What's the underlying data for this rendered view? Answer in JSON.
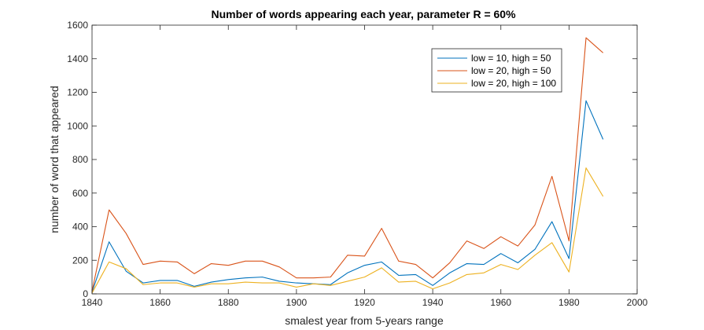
{
  "chart_data": {
    "type": "line",
    "title": "Number of words appearing each year, parameter R = 60%",
    "xlabel": "smalest year from 5-years range",
    "ylabel": "number of word that appeared",
    "xlim": [
      1840,
      2000
    ],
    "ylim": [
      0,
      1600
    ],
    "xticks": [
      1840,
      1860,
      1880,
      1900,
      1920,
      1940,
      1960,
      1980,
      2000
    ],
    "yticks": [
      0,
      200,
      400,
      600,
      800,
      1000,
      1200,
      1400,
      1600
    ],
    "grid": false,
    "legend_position": "top-right",
    "x": [
      1840,
      1845,
      1850,
      1855,
      1860,
      1865,
      1870,
      1875,
      1880,
      1885,
      1890,
      1895,
      1900,
      1905,
      1910,
      1915,
      1920,
      1925,
      1930,
      1935,
      1940,
      1945,
      1950,
      1955,
      1960,
      1965,
      1970,
      1975,
      1980,
      1985,
      1990
    ],
    "series": [
      {
        "name": "low = 10, high = 50",
        "color": "#0072BD",
        "values": [
          10,
          310,
          135,
          65,
          80,
          80,
          45,
          70,
          85,
          95,
          100,
          75,
          65,
          60,
          55,
          125,
          170,
          190,
          110,
          115,
          50,
          125,
          180,
          175,
          240,
          185,
          265,
          430,
          210,
          1150,
          920
        ]
      },
      {
        "name": "low = 20, high = 50",
        "color": "#D95319",
        "values": [
          15,
          500,
          360,
          175,
          195,
          190,
          120,
          180,
          170,
          195,
          195,
          160,
          95,
          95,
          100,
          230,
          225,
          390,
          195,
          175,
          95,
          185,
          315,
          270,
          340,
          285,
          410,
          700,
          315,
          1525,
          1435
        ]
      },
      {
        "name": "low = 20, high = 100",
        "color": "#EDB120",
        "values": [
          5,
          190,
          150,
          55,
          65,
          65,
          40,
          60,
          60,
          70,
          65,
          65,
          40,
          60,
          50,
          75,
          100,
          155,
          70,
          75,
          30,
          65,
          115,
          125,
          175,
          145,
          230,
          305,
          130,
          750,
          580
        ]
      }
    ]
  }
}
